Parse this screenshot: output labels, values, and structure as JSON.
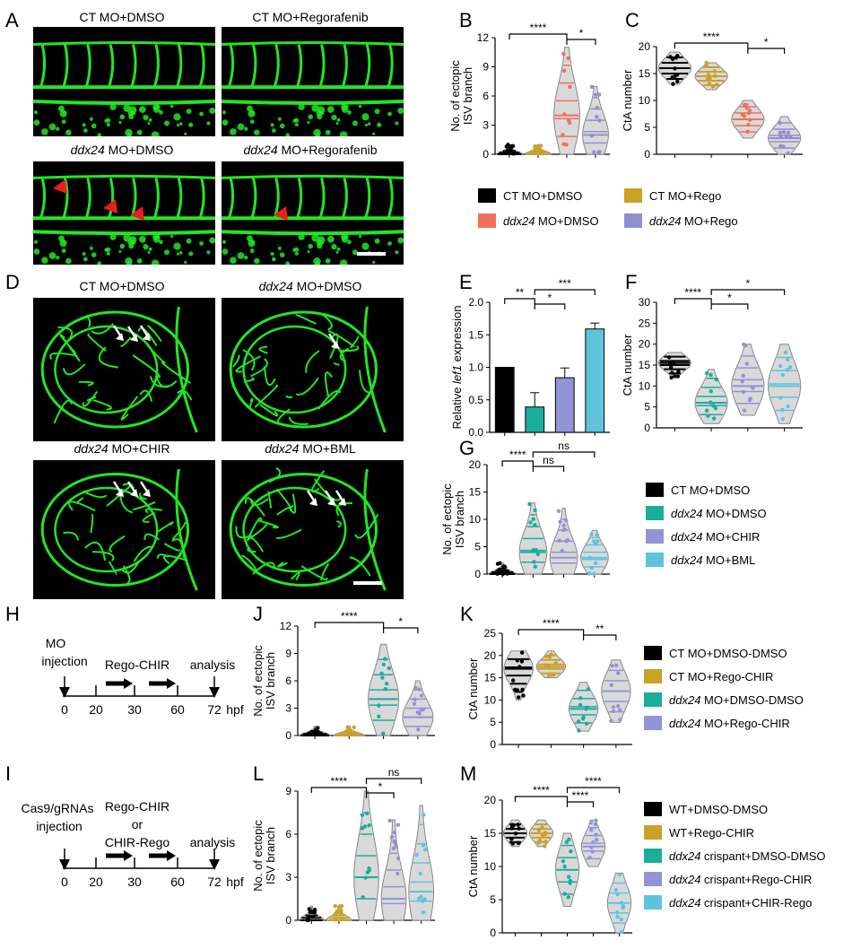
{
  "panel_letters": {
    "A": "A",
    "B": "B",
    "C": "C",
    "D": "D",
    "E": "E",
    "F": "F",
    "G": "G",
    "H": "H",
    "I": "I",
    "J": "J",
    "K": "K",
    "L": "L",
    "M": "M"
  },
  "colors": {
    "ct_dmso": "#000000",
    "ct_rego": "#c9a227",
    "ddx_dmso": "#f0705a",
    "ddx_rego": "#8f8fd0",
    "teal": "#1aae9b",
    "lavender": "#9393d6",
    "sky": "#5fc3dc",
    "gray_violin": "#d9d9d9",
    "vessel": "#22e622",
    "arrowhead": "#ee1c1c",
    "arrow": "#ffffff",
    "star": "#000000"
  },
  "micro": {
    "A1": "CT MO+DMSO",
    "A2": "CT MO+Regorafenib",
    "A3_i": "ddx24",
    "A3_r": " MO+DMSO",
    "A4_i": "ddx24",
    "A4_r": " MO+Regorafenib",
    "D1": "CT MO+DMSO",
    "D2_i": "ddx24",
    "D2_r": " MO+DMSO",
    "D3_i": "ddx24",
    "D3_r": " MO+CHIR",
    "D4_i": "ddx24",
    "D4_r": " MO+BML"
  },
  "legend_ab": [
    {
      "i": "",
      "r": "CT MO+DMSO",
      "color": "ct_dmso"
    },
    {
      "i": "",
      "r": "CT MO+Rego",
      "color": "ct_rego"
    },
    {
      "i": "ddx24",
      "r": " MO+DMSO",
      "color": "ddx_dmso"
    },
    {
      "i": "ddx24",
      "r": " MO+Rego",
      "color": "ddx_rego"
    }
  ],
  "legend_g": [
    {
      "i": "",
      "r": "CT MO+DMSO",
      "color": "ct_dmso"
    },
    {
      "i": "ddx24",
      "r": " MO+DMSO",
      "color": "teal"
    },
    {
      "i": "ddx24",
      "r": " MO+CHIR",
      "color": "lavender"
    },
    {
      "i": "ddx24",
      "r": " MO+BML",
      "color": "sky"
    }
  ],
  "legend_k": [
    {
      "i": "",
      "r": "CT MO+DMSO-DMSO",
      "color": "ct_dmso"
    },
    {
      "i": "",
      "r": "CT MO+Rego-CHIR",
      "color": "ct_rego"
    },
    {
      "i": "ddx24",
      "r": " MO+DMSO-DMSO",
      "color": "teal"
    },
    {
      "i": "ddx24",
      "r": " MO+Rego-CHIR",
      "color": "lavender"
    }
  ],
  "legend_m": [
    {
      "i": "",
      "r": "WT+DMSO-DMSO",
      "color": "ct_dmso"
    },
    {
      "i": "",
      "r": "WT+Rego-CHIR",
      "color": "ct_rego"
    },
    {
      "i": "ddx24",
      "r": " crispant+DMSO-DMSO",
      "color": "teal"
    },
    {
      "i": "ddx24",
      "r": " crispant+Rego-CHIR",
      "color": "lavender"
    },
    {
      "i": "ddx24",
      "r": " crispant+CHIR-Rego",
      "color": "sky"
    }
  ],
  "timeline_H": {
    "ticks": [
      "0",
      "20",
      "30",
      "60",
      "72"
    ],
    "unit": "hpf",
    "labels": {
      "inj1": "MO",
      "inj2": "injection",
      "treat": "Rego-CHIR",
      "analysis": "analysis"
    }
  },
  "timeline_I": {
    "ticks": [
      "0",
      "20",
      "30",
      "60",
      "72"
    ],
    "unit": "hpf",
    "labels": {
      "inj1": "Cas9/gRNAs",
      "inj2": "injection",
      "treat1": "Rego-CHIR",
      "treat2": "or",
      "treat3": "CHIR-Rego",
      "analysis": "analysis"
    }
  },
  "chart_data": [
    {
      "id": "B",
      "type": "violin",
      "ylabel": [
        "No. of ectopic",
        "ISV branch"
      ],
      "yticks": [
        0,
        3,
        6,
        9,
        12
      ],
      "ylim": [
        0,
        12
      ],
      "groups": [
        "CT MO+DMSO",
        "CT MO+Rego",
        "ddx24 MO+DMSO",
        "ddx24 MO+Rego"
      ],
      "group_colors": [
        "ct_dmso",
        "ct_rego",
        "ddx_dmso",
        "ddx_rego"
      ],
      "medians": [
        0,
        0,
        4,
        2
      ],
      "max": [
        1,
        1,
        11,
        7
      ],
      "sig": [
        {
          "from": 0,
          "to": 2,
          "label": "****"
        },
        {
          "from": 2,
          "to": 3,
          "label": "*"
        }
      ]
    },
    {
      "id": "C",
      "type": "violin",
      "ylabel": [
        "CtA number"
      ],
      "yticks": [
        0,
        5,
        10,
        15,
        20
      ],
      "ylim": [
        0,
        20
      ],
      "groups": [
        "CT MO+DMSO",
        "CT MO+Rego",
        "ddx24 MO+DMSO",
        "ddx24 MO+Rego"
      ],
      "group_colors": [
        "ct_dmso",
        "ct_rego",
        "ddx_dmso",
        "ddx_rego"
      ],
      "medians": [
        16,
        14.5,
        6.5,
        3
      ],
      "min": [
        13,
        12,
        3,
        0
      ],
      "max": [
        19,
        17,
        10,
        7
      ],
      "sig": [
        {
          "from": 0,
          "to": 2,
          "label": "****"
        },
        {
          "from": 2,
          "to": 3,
          "label": "*"
        }
      ]
    },
    {
      "id": "E",
      "type": "bar",
      "ylabel_pre": "Relative ",
      "ylabel_it": "lef1",
      "ylabel_post": " expression",
      "yticks": [
        0.0,
        0.5,
        1.0,
        1.5,
        2.0
      ],
      "ylim": [
        0,
        2.0
      ],
      "groups": [
        "CT MO+DMSO",
        "ddx24 MO+DMSO",
        "ddx24 MO+CHIR",
        "ddx24 MO+BML"
      ],
      "group_colors": [
        "ct_dmso",
        "teal",
        "lavender",
        "sky"
      ],
      "values": [
        1.0,
        0.39,
        0.84,
        1.59
      ],
      "errors": [
        0,
        0.22,
        0.15,
        0.09
      ],
      "sig": [
        {
          "from": 0,
          "to": 1,
          "label": "**"
        },
        {
          "from": 1,
          "to": 2,
          "label": "*"
        },
        {
          "from": 1,
          "to": 3,
          "label": "***"
        }
      ]
    },
    {
      "id": "F",
      "type": "violin",
      "ylabel": [
        "CtA number"
      ],
      "yticks": [
        0,
        5,
        10,
        15,
        20,
        25,
        30
      ],
      "ylim": [
        0,
        30
      ],
      "groups": [
        "CT MO+DMSO",
        "ddx24 MO+DMSO",
        "ddx24 MO+CHIR",
        "ddx24 MO+BML"
      ],
      "group_colors": [
        "ct_dmso",
        "teal",
        "lavender",
        "sky"
      ],
      "medians": [
        15.5,
        6,
        10,
        10
      ],
      "min": [
        12,
        1,
        3,
        1
      ],
      "max": [
        18,
        14,
        20,
        20
      ],
      "sig": [
        {
          "from": 0,
          "to": 1,
          "label": "****"
        },
        {
          "from": 1,
          "to": 2,
          "label": "*"
        },
        {
          "from": 1,
          "to": 3,
          "label": "*"
        }
      ]
    },
    {
      "id": "G",
      "type": "violin",
      "ylabel": [
        "No. of ectopic",
        "ISV branch"
      ],
      "yticks": [
        0,
        5,
        10,
        15,
        20
      ],
      "ylim": [
        0,
        20
      ],
      "groups": [
        "CT MO+DMSO",
        "ddx24 MO+DMSO",
        "ddx24 MO+CHIR",
        "ddx24 MO+BML"
      ],
      "group_colors": [
        "ct_dmso",
        "teal",
        "lavender",
        "sky"
      ],
      "medians": [
        0,
        4,
        3,
        3
      ],
      "min": [
        0,
        0,
        0,
        0
      ],
      "max": [
        2,
        13,
        12,
        8
      ],
      "sig": [
        {
          "from": 0,
          "to": 1,
          "label": "****"
        },
        {
          "from": 1,
          "to": 2,
          "label": "ns"
        },
        {
          "from": 1,
          "to": 3,
          "label": "ns"
        }
      ]
    },
    {
      "id": "J",
      "type": "violin",
      "ylabel": [
        "No. of ectopic",
        "ISV branch"
      ],
      "yticks": [
        0,
        3,
        6,
        9,
        12
      ],
      "ylim": [
        0,
        12
      ],
      "groups": [
        "CT MO+DMSO-DMSO",
        "CT MO+Rego-CHIR",
        "ddx24 MO+DMSO-DMSO",
        "ddx24 MO+Rego-CHIR"
      ],
      "group_colors": [
        "ct_dmso",
        "ct_rego",
        "teal",
        "lavender"
      ],
      "medians": [
        0,
        0,
        4,
        2
      ],
      "min": [
        0,
        0,
        0,
        0
      ],
      "max": [
        1,
        1,
        10,
        6
      ],
      "sig": [
        {
          "from": 0,
          "to": 2,
          "label": "****"
        },
        {
          "from": 2,
          "to": 3,
          "label": "*"
        }
      ]
    },
    {
      "id": "K",
      "type": "violin",
      "ylabel": [
        "CtA number"
      ],
      "yticks": [
        0,
        5,
        10,
        15,
        20,
        25
      ],
      "ylim": [
        0,
        25
      ],
      "groups": [
        "CT MO+DMSO-DMSO",
        "CT MO+Rego-CHIR",
        "ddx24 MO+DMSO-DMSO",
        "ddx24 MO+Rego-CHIR"
      ],
      "group_colors": [
        "ct_dmso",
        "ct_rego",
        "teal",
        "lavender"
      ],
      "medians": [
        17,
        17.5,
        8,
        12
      ],
      "min": [
        10,
        15,
        3,
        5
      ],
      "max": [
        21,
        21,
        14,
        19
      ],
      "sig": [
        {
          "from": 0,
          "to": 2,
          "label": "****"
        },
        {
          "from": 2,
          "to": 3,
          "label": "**"
        }
      ]
    },
    {
      "id": "L",
      "type": "violin",
      "ylabel": [
        "No. of ectopic",
        "ISV branch"
      ],
      "yticks": [
        0,
        3,
        6,
        9
      ],
      "ylim": [
        0,
        9
      ],
      "groups": [
        "WT+DMSO-DMSO",
        "WT+Rego-CHIR",
        "ddx24 crispant+DMSO-DMSO",
        "ddx24 crispant+Rego-CHIR",
        "ddx24 crispant+CHIR-Rego"
      ],
      "group_colors": [
        "ct_dmso",
        "ct_rego",
        "teal",
        "lavender",
        "sky"
      ],
      "medians": [
        0,
        0,
        3,
        1.5,
        2
      ],
      "min": [
        0,
        0,
        0,
        0,
        0
      ],
      "max": [
        1,
        1,
        9,
        7,
        8
      ],
      "sig": [
        {
          "from": 0,
          "to": 2,
          "label": "****"
        },
        {
          "from": 2,
          "to": 3,
          "label": "*"
        },
        {
          "from": 2,
          "to": 4,
          "label": "ns"
        }
      ]
    },
    {
      "id": "M",
      "type": "violin",
      "ylabel": [
        "CtA number"
      ],
      "yticks": [
        0,
        5,
        10,
        15,
        20
      ],
      "ylim": [
        0,
        20
      ],
      "groups": [
        "WT+DMSO-DMSO",
        "WT+Rego-CHIR",
        "ddx24 crispant+DMSO-DMSO",
        "ddx24 crispant+Rego-CHIR",
        "ddx24 crispant+CHIR-Rego"
      ],
      "group_colors": [
        "ct_dmso",
        "ct_rego",
        "teal",
        "lavender",
        "sky"
      ],
      "medians": [
        15,
        15,
        9.5,
        13,
        4.5
      ],
      "min": [
        13,
        13,
        4,
        10,
        0
      ],
      "max": [
        17,
        17,
        15,
        17,
        9
      ],
      "sig": [
        {
          "from": 0,
          "to": 2,
          "label": "****"
        },
        {
          "from": 2,
          "to": 3,
          "label": "****"
        },
        {
          "from": 2,
          "to": 4,
          "label": "****"
        }
      ]
    }
  ]
}
